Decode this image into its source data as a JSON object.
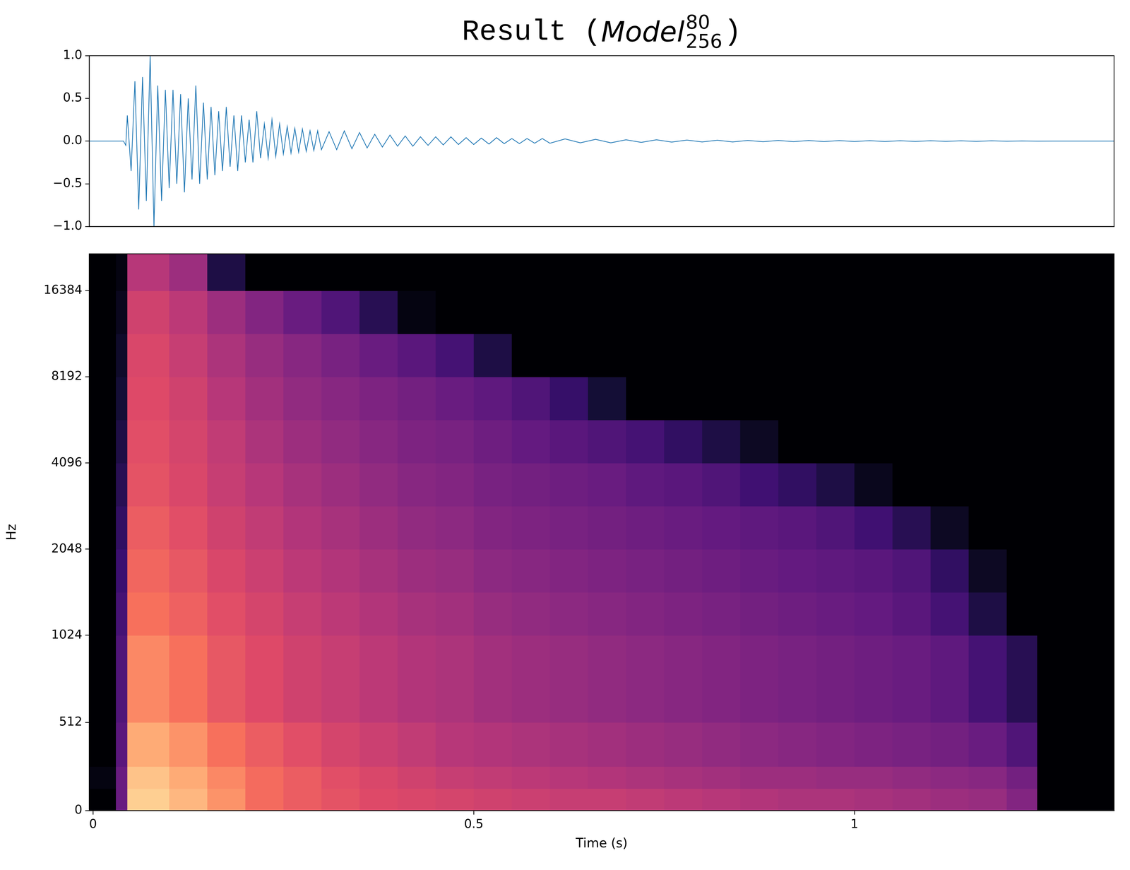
{
  "chart_data": [
    {
      "type": "line",
      "title": {
        "prefix": "Result (",
        "symbol": "Model",
        "sup": "80",
        "sub": "256",
        "suffix": ")"
      },
      "x": [
        -0.005,
        0.04,
        0.043,
        0.045,
        0.05,
        0.055,
        0.06,
        0.065,
        0.07,
        0.075,
        0.08,
        0.085,
        0.09,
        0.095,
        0.1,
        0.105,
        0.11,
        0.115,
        0.12,
        0.125,
        0.13,
        0.135,
        0.14,
        0.145,
        0.15,
        0.155,
        0.16,
        0.165,
        0.17,
        0.175,
        0.18,
        0.185,
        0.19,
        0.195,
        0.2,
        0.205,
        0.21,
        0.215,
        0.22,
        0.225,
        0.23,
        0.235,
        0.24,
        0.245,
        0.25,
        0.255,
        0.26,
        0.265,
        0.27,
        0.275,
        0.28,
        0.285,
        0.29,
        0.295,
        0.3,
        0.31,
        0.32,
        0.33,
        0.34,
        0.35,
        0.36,
        0.37,
        0.38,
        0.39,
        0.4,
        0.41,
        0.42,
        0.43,
        0.44,
        0.45,
        0.46,
        0.47,
        0.48,
        0.49,
        0.5,
        0.51,
        0.52,
        0.53,
        0.54,
        0.55,
        0.56,
        0.57,
        0.58,
        0.59,
        0.6,
        0.62,
        0.64,
        0.66,
        0.68,
        0.7,
        0.72,
        0.74,
        0.76,
        0.78,
        0.8,
        0.82,
        0.84,
        0.86,
        0.88,
        0.9,
        0.92,
        0.94,
        0.96,
        0.98,
        1.0,
        1.02,
        1.04,
        1.06,
        1.08,
        1.1,
        1.12,
        1.14,
        1.16,
        1.18,
        1.2,
        1.22,
        1.24,
        1.26,
        1.341
      ],
      "values": [
        0,
        0,
        -0.05,
        0.3,
        -0.35,
        0.7,
        -0.8,
        0.75,
        -0.7,
        1.0,
        -1.0,
        0.65,
        -0.7,
        0.6,
        -0.55,
        0.6,
        -0.5,
        0.55,
        -0.6,
        0.5,
        -0.45,
        0.65,
        -0.5,
        0.45,
        -0.45,
        0.4,
        -0.4,
        0.35,
        -0.35,
        0.4,
        -0.3,
        0.3,
        -0.35,
        0.3,
        -0.25,
        0.25,
        -0.25,
        0.35,
        -0.2,
        0.2,
        -0.2,
        0.25,
        -0.18,
        0.2,
        -0.15,
        0.17,
        -0.14,
        0.15,
        -0.13,
        0.14,
        -0.12,
        0.12,
        -0.11,
        0.12,
        -0.1,
        0.11,
        -0.1,
        0.12,
        -0.09,
        0.1,
        -0.08,
        0.08,
        -0.07,
        0.07,
        -0.06,
        0.06,
        -0.06,
        0.05,
        -0.05,
        0.05,
        -0.045,
        0.05,
        -0.04,
        0.04,
        -0.04,
        0.035,
        -0.035,
        0.04,
        -0.03,
        0.03,
        -0.03,
        0.03,
        -0.025,
        0.03,
        -0.025,
        0.025,
        -0.02,
        0.02,
        -0.02,
        0.015,
        -0.015,
        0.015,
        -0.012,
        0.012,
        -0.01,
        0.01,
        -0.01,
        0.008,
        -0.008,
        0.008,
        -0.007,
        0.007,
        -0.006,
        0.006,
        -0.005,
        0.005,
        -0.005,
        0.004,
        -0.004,
        0.004,
        -0.003,
        0.003,
        -0.003,
        0.003,
        -0.002,
        0.002,
        -0.001,
        0,
        0
      ],
      "color": "#1f77b4",
      "xlim": [
        -0.005,
        1.341
      ],
      "ylim": [
        -1,
        1
      ],
      "yticks": [
        {
          "value": -1,
          "label": "−1.0"
        },
        {
          "value": -0.5,
          "label": "−0.5"
        },
        {
          "value": 0,
          "label": "0.0"
        },
        {
          "value": 0.5,
          "label": "0.5"
        },
        {
          "value": 1,
          "label": "1.0"
        }
      ],
      "tick_labels": "y",
      "grid": false
    },
    {
      "type": "heatmap",
      "xlabel": "Time (s)",
      "ylabel": "Hz",
      "xlim": [
        -0.005,
        1.341
      ],
      "ylim": [
        0,
        22050
      ],
      "xticks": [
        0,
        0.5,
        1
      ],
      "yticks": [
        0,
        512,
        1024,
        2048,
        4096,
        8192,
        16384
      ],
      "log": "y",
      "grid": false,
      "x_edges": [
        -0.005,
        0.03,
        0.045,
        0.1,
        0.15,
        0.2,
        0.25,
        0.3,
        0.35,
        0.4,
        0.45,
        0.5,
        0.55,
        0.6,
        0.65,
        0.7,
        0.75,
        0.8,
        0.85,
        0.9,
        0.95,
        1.0,
        1.05,
        1.1,
        1.15,
        1.2,
        1.24,
        1.341
      ],
      "y_edges": [
        0,
        128,
        256,
        512,
        1024,
        1448,
        2048,
        2896,
        4096,
        5793,
        8192,
        11585,
        16384,
        22050
      ],
      "zlim": [
        -80,
        0
      ],
      "cells": [
        [
          -80,
          -55,
          -8,
          -12,
          -18,
          -25,
          -28,
          -30,
          -32,
          -33,
          -34,
          -35,
          -36,
          -37,
          -37,
          -38,
          -39,
          -40,
          -41,
          -42,
          -42,
          -43,
          -44,
          -45,
          -46,
          -50,
          -80
        ],
        [
          -78,
          -55,
          -10,
          -14,
          -20,
          -25,
          -28,
          -31,
          -33,
          -35,
          -37,
          -38,
          -39,
          -40,
          -41,
          -42,
          -43,
          -44,
          -45,
          -45,
          -46,
          -46,
          -47,
          -48,
          -49,
          -53,
          -80
        ],
        [
          -80,
          -58,
          -14,
          -18,
          -24,
          -28,
          -31,
          -34,
          -36,
          -38,
          -40,
          -41,
          -42,
          -43,
          -44,
          -45,
          -46,
          -47,
          -48,
          -49,
          -50,
          -51,
          -52,
          -53,
          -55,
          -60,
          -80
        ],
        [
          -80,
          -60,
          -20,
          -24,
          -29,
          -32,
          -35,
          -37,
          -39,
          -41,
          -42,
          -44,
          -45,
          -46,
          -47,
          -48,
          -49,
          -50,
          -51,
          -52,
          -53,
          -54,
          -55,
          -57,
          -62,
          -68,
          -80
        ],
        [
          -80,
          -62,
          -24,
          -27,
          -31,
          -34,
          -37,
          -39,
          -41,
          -43,
          -44,
          -46,
          -47,
          -48,
          -49,
          -50,
          -51,
          -52,
          -53,
          -54,
          -55,
          -56,
          -58,
          -62,
          -70,
          -80,
          -80
        ],
        [
          -80,
          -64,
          -26,
          -29,
          -33,
          -36,
          -39,
          -41,
          -43,
          -45,
          -46,
          -48,
          -49,
          -50,
          -51,
          -52,
          -53,
          -54,
          -55,
          -56,
          -57,
          -58,
          -60,
          -66,
          -75,
          -80,
          -80
        ],
        [
          -80,
          -66,
          -28,
          -31,
          -35,
          -38,
          -41,
          -43,
          -45,
          -47,
          -48,
          -50,
          -51,
          -52,
          -53,
          -54,
          -55,
          -56,
          -57,
          -58,
          -60,
          -63,
          -68,
          -75,
          -80,
          -80,
          -80
        ],
        [
          -80,
          -68,
          -30,
          -33,
          -37,
          -40,
          -43,
          -45,
          -47,
          -49,
          -50,
          -52,
          -53,
          -54,
          -55,
          -57,
          -58,
          -60,
          -63,
          -66,
          -70,
          -76,
          -80,
          -80,
          -80,
          -80,
          -80
        ],
        [
          -80,
          -70,
          -31,
          -34,
          -38,
          -42,
          -45,
          -47,
          -49,
          -51,
          -52,
          -54,
          -56,
          -58,
          -60,
          -62,
          -66,
          -70,
          -75,
          -80,
          -80,
          -80,
          -80,
          -80,
          -80,
          -80,
          -80
        ],
        [
          -80,
          -72,
          -32,
          -35,
          -40,
          -44,
          -47,
          -49,
          -51,
          -53,
          -55,
          -57,
          -60,
          -65,
          -72,
          -80,
          -80,
          -80,
          -80,
          -80,
          -80,
          -80,
          -80,
          -80,
          -80,
          -80,
          -80
        ],
        [
          -80,
          -74,
          -33,
          -37,
          -42,
          -46,
          -49,
          -52,
          -55,
          -58,
          -62,
          -70,
          -80,
          -80,
          -80,
          -80,
          -80,
          -80,
          -80,
          -80,
          -80,
          -80,
          -80,
          -80,
          -80,
          -80,
          -80
        ],
        [
          -80,
          -76,
          -35,
          -39,
          -45,
          -50,
          -55,
          -60,
          -68,
          -78,
          -80,
          -80,
          -80,
          -80,
          -80,
          -80,
          -80,
          -80,
          -80,
          -80,
          -80,
          -80,
          -80,
          -80,
          -80,
          -80,
          -80
        ],
        [
          -80,
          -78,
          -40,
          -45,
          -70,
          -80,
          -80,
          -80,
          -80,
          -80,
          -80,
          -80,
          -80,
          -80,
          -80,
          -80,
          -80,
          -80,
          -80,
          -80,
          -80,
          -80,
          -80,
          -80,
          -80,
          -80,
          -80
        ]
      ]
    }
  ]
}
